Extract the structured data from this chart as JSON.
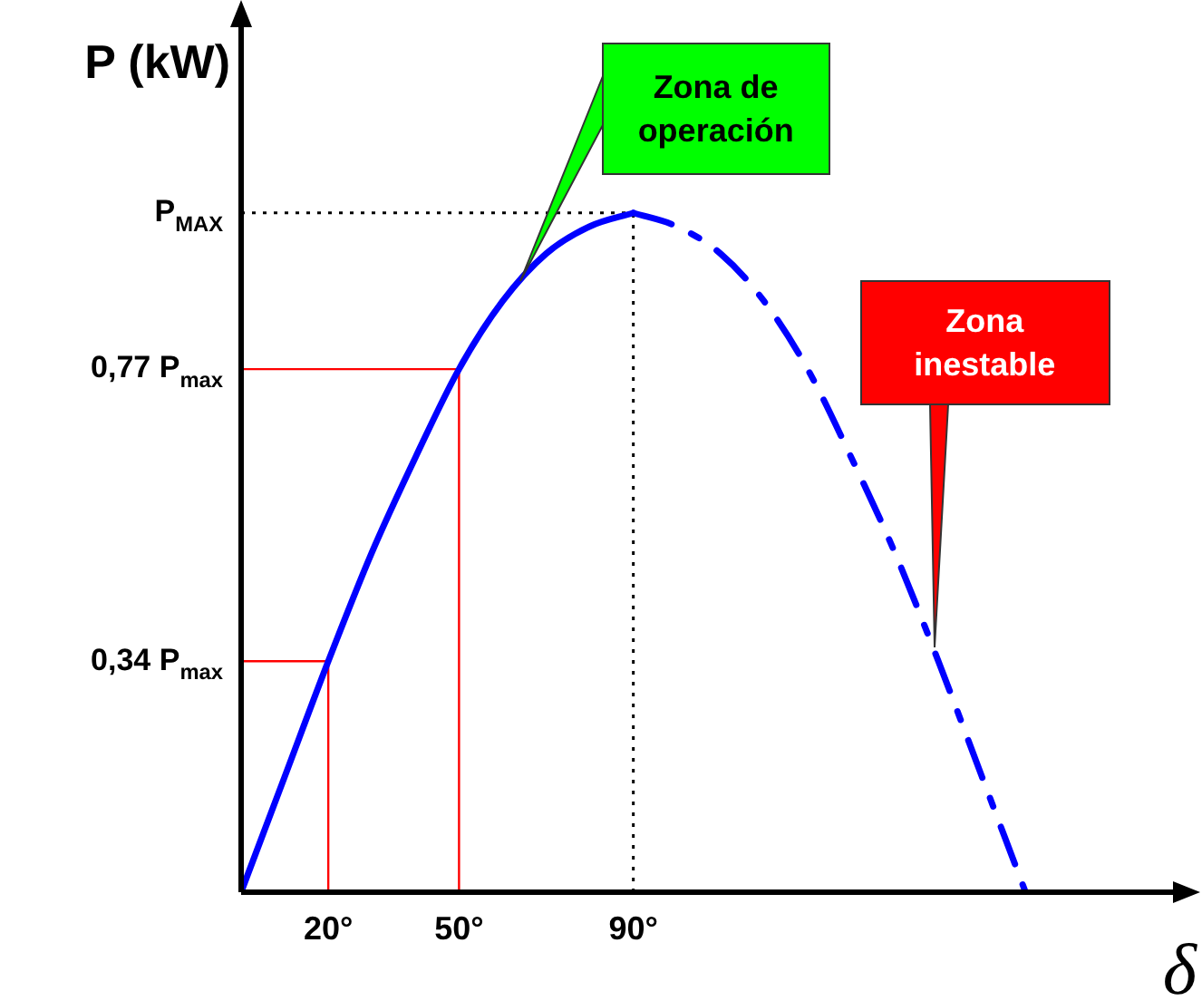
{
  "chart_data": {
    "type": "line",
    "ylabel": "P (kW)",
    "xlabel": "δ",
    "series": [
      {
        "color": "#0000ff",
        "line_style": "solid",
        "x": [
          0,
          10,
          20,
          30,
          40,
          50,
          60,
          70,
          80,
          90
        ],
        "values": [
          0,
          0.17,
          0.34,
          0.5,
          0.64,
          0.77,
          0.87,
          0.94,
          0.98,
          1
        ]
      },
      {
        "color": "#0000ff",
        "line_style": "dashed",
        "x": [
          90,
          100,
          110,
          120,
          130,
          140,
          150,
          160,
          170,
          180
        ],
        "values": [
          1,
          0.98,
          0.94,
          0.87,
          0.77,
          0.64,
          0.5,
          0.34,
          0.17,
          0
        ]
      }
    ],
    "xlim": [
      0,
      218
    ],
    "ylim": [
      0,
      1.3
    ],
    "xticks": [
      {
        "value": 20,
        "label": "20°"
      },
      {
        "value": 50,
        "label": "50°"
      },
      {
        "value": 90,
        "label": "90°"
      }
    ],
    "yticks": [
      {
        "value": 0.34,
        "label": "0,34 P$_{max}$"
      },
      {
        "value": 0.77,
        "label": "0,77 P$_{max}$"
      },
      {
        "value": 1,
        "label": "P$_{MAX}$"
      }
    ],
    "ref_lines": [
      {
        "axis": "x",
        "value": 20,
        "color": "#ff0000",
        "line_style": "solid"
      },
      {
        "axis": "x",
        "value": 50,
        "color": "#ff0000",
        "line_style": "solid"
      },
      {
        "axis": "x",
        "value": 90,
        "color": "#000000",
        "line_style": "dotted"
      },
      {
        "axis": "y",
        "value": 0.34,
        "color": "#ff0000",
        "line_style": "solid"
      },
      {
        "axis": "y",
        "value": 0.77,
        "color": "#ff0000",
        "line_style": "solid"
      },
      {
        "axis": "y",
        "value": 1,
        "color": "#000000",
        "line_style": "dotted"
      }
    ],
    "annotations": [
      {
        "text": "Zona de\noperación",
        "x": 64,
        "y": 0.9
      },
      {
        "text": "Zona\ninestable",
        "x": 159,
        "y": 0.36
      }
    ],
    "grid": false,
    "legend": false,
    "marker": "none"
  }
}
